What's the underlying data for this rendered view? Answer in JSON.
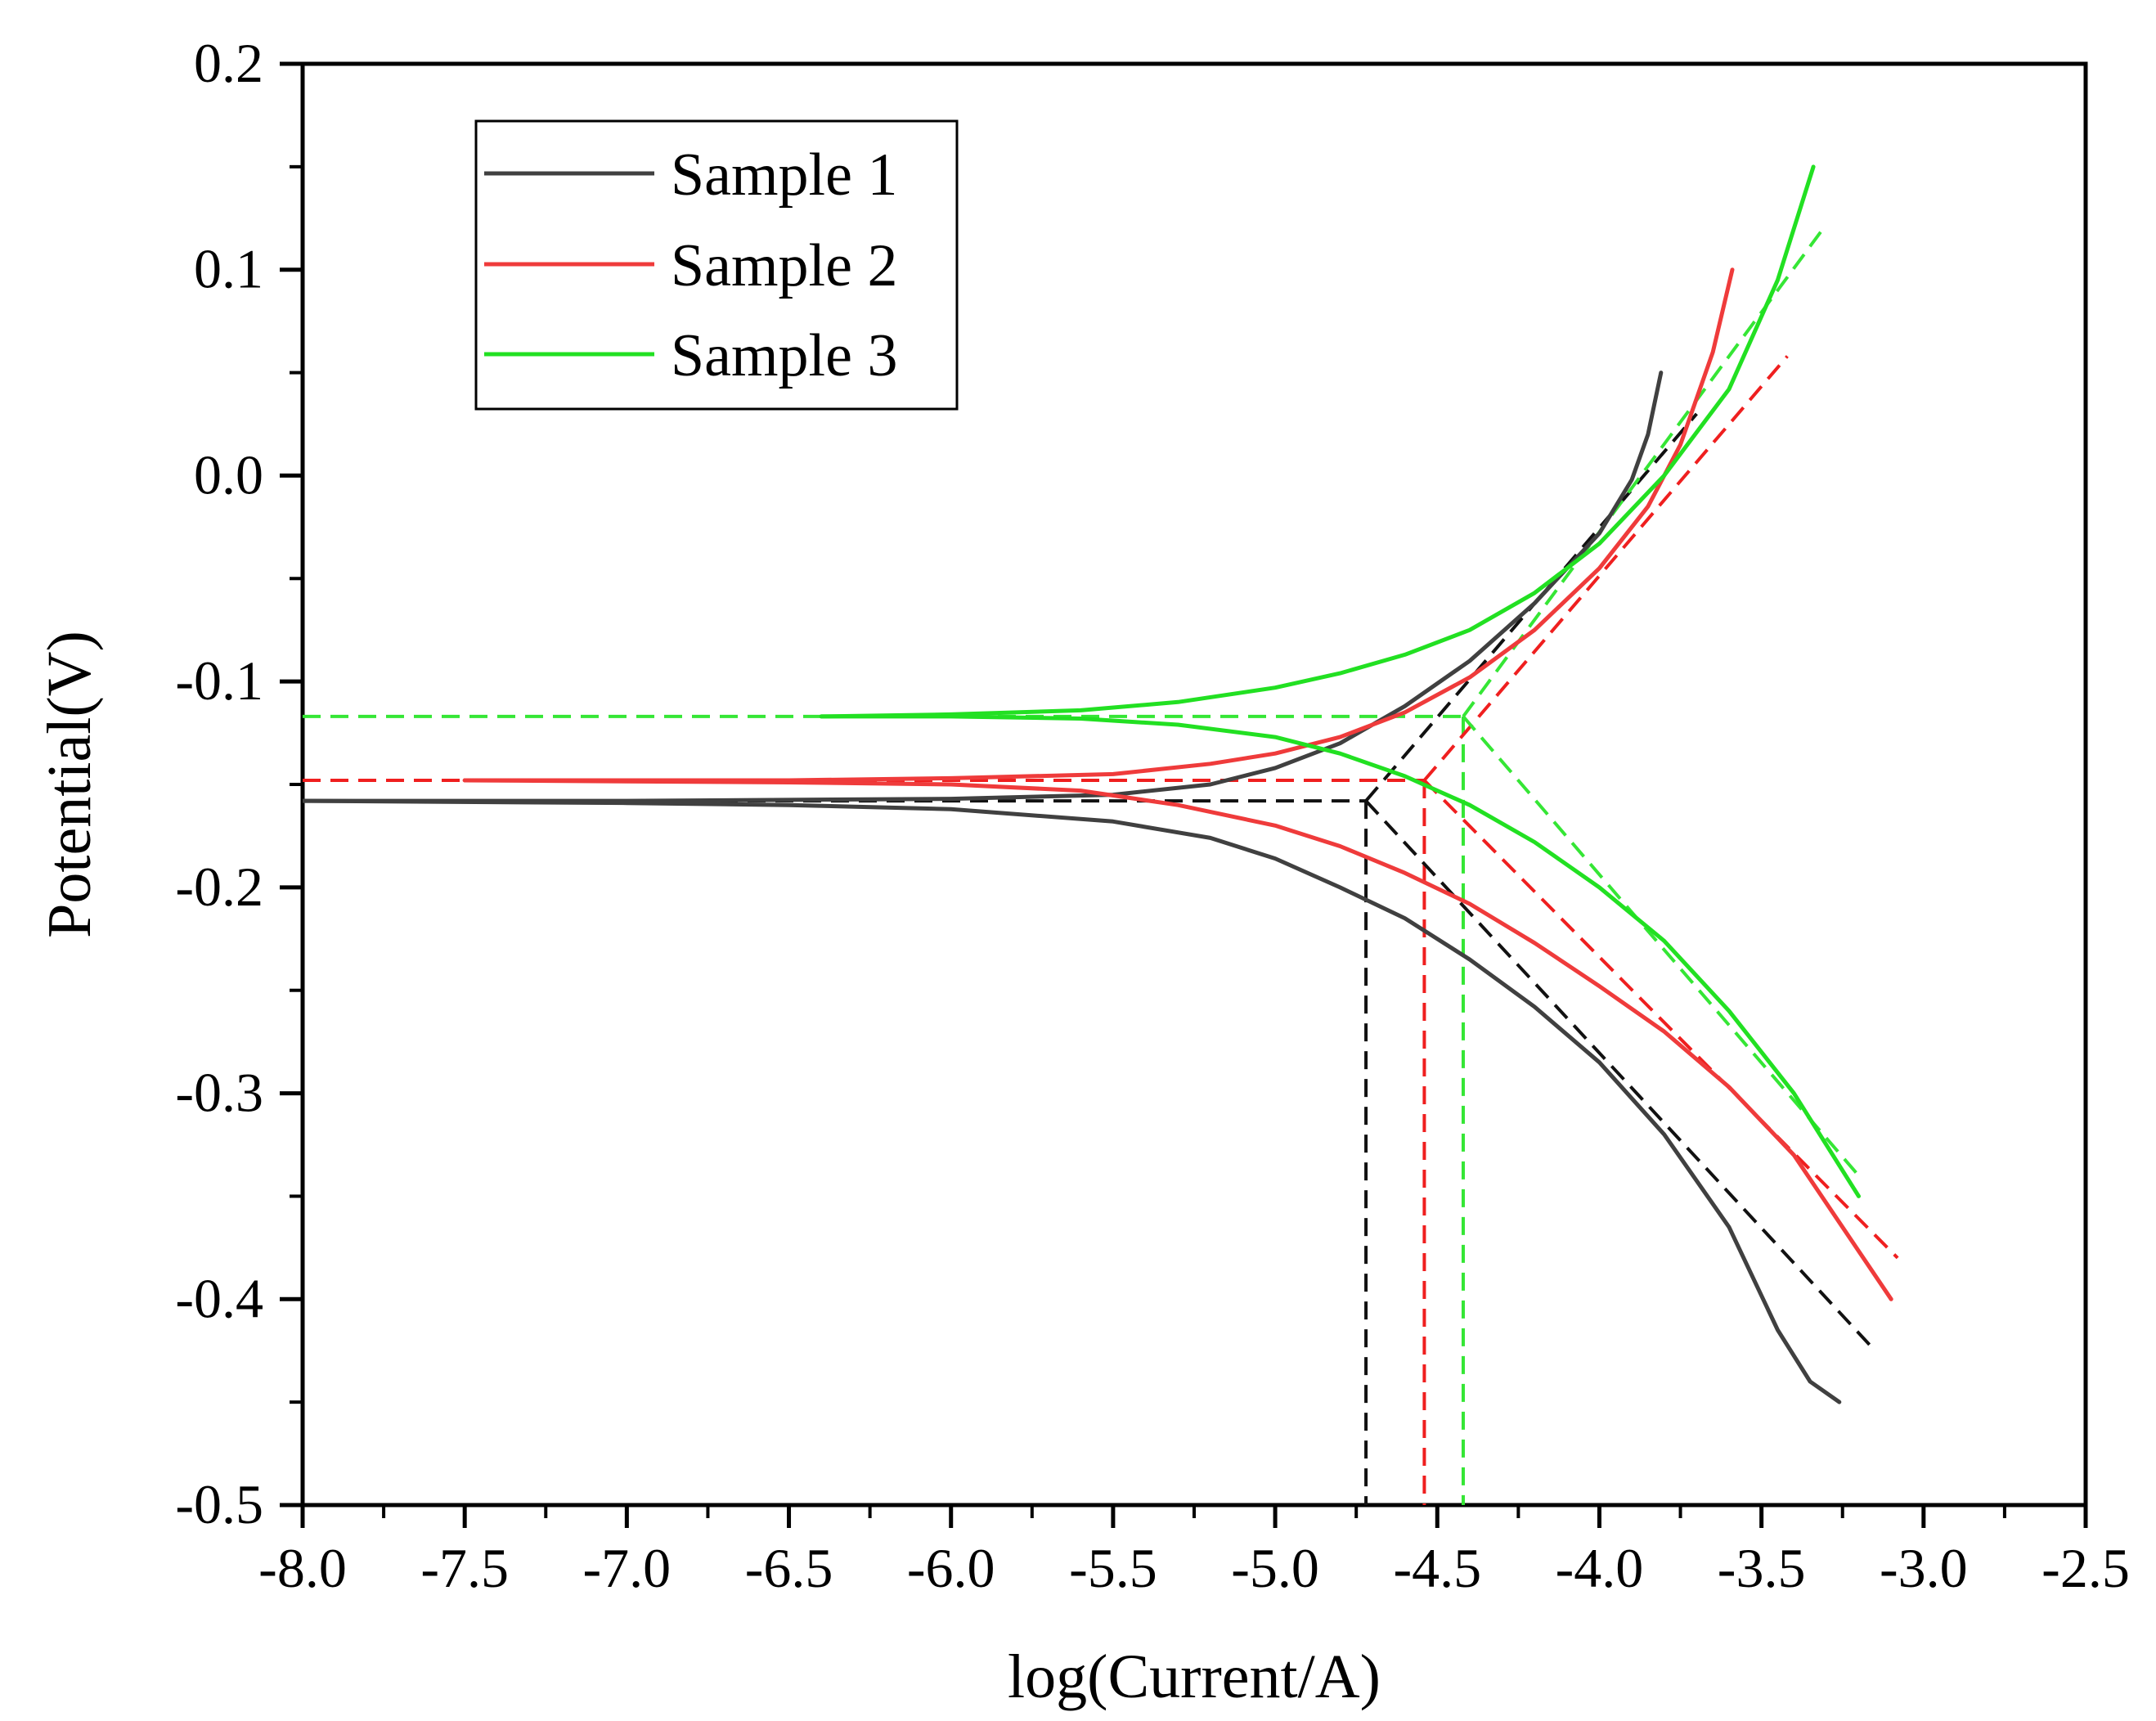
{
  "chart_data": {
    "type": "line",
    "title": "",
    "xlabel": "log(Current/A)",
    "ylabel": "Potential(V)",
    "xlim": [
      -8.0,
      -2.5
    ],
    "ylim": [
      -0.5,
      0.2
    ],
    "x_ticks": [
      -8.0,
      -7.5,
      -7.0,
      -6.5,
      -6.0,
      -5.5,
      -5.0,
      -4.5,
      -4.0,
      -3.5,
      -3.0,
      -2.5
    ],
    "x_tick_labels": [
      "-8.0",
      "-7.5",
      "-7.0",
      "-6.5",
      "-6.0",
      "-5.5",
      "-5.0",
      "-4.5",
      "-4.0",
      "-3.5",
      "-3.0",
      "-2.5"
    ],
    "y_ticks": [
      -0.5,
      -0.4,
      -0.3,
      -0.2,
      -0.1,
      0.0,
      0.1,
      0.2
    ],
    "y_tick_labels": [
      "-0.5",
      "-0.4",
      "-0.3",
      "-0.2",
      "-0.1",
      "0.0",
      "0.1",
      "0.2"
    ],
    "legend_position": "top-left",
    "grid": false,
    "series": [
      {
        "name": "Sample 1",
        "color": "#404040",
        "anodic": [
          [
            -8.0,
            -0.158
          ],
          [
            -7.0,
            -0.158
          ],
          [
            -6.0,
            -0.157
          ],
          [
            -5.5,
            -0.155
          ],
          [
            -5.2,
            -0.15
          ],
          [
            -5.0,
            -0.142
          ],
          [
            -4.8,
            -0.13
          ],
          [
            -4.6,
            -0.112
          ],
          [
            -4.4,
            -0.09
          ],
          [
            -4.2,
            -0.062
          ],
          [
            -4.0,
            -0.028
          ],
          [
            -3.9,
            -0.002
          ],
          [
            -3.85,
            0.02
          ],
          [
            -3.81,
            0.05
          ]
        ],
        "cathodic": [
          [
            -8.0,
            -0.158
          ],
          [
            -7.0,
            -0.159
          ],
          [
            -6.5,
            -0.16
          ],
          [
            -6.0,
            -0.162
          ],
          [
            -5.5,
            -0.168
          ],
          [
            -5.2,
            -0.176
          ],
          [
            -5.0,
            -0.186
          ],
          [
            -4.8,
            -0.2
          ],
          [
            -4.6,
            -0.215
          ],
          [
            -4.4,
            -0.235
          ],
          [
            -4.2,
            -0.258
          ],
          [
            -4.0,
            -0.285
          ],
          [
            -3.8,
            -0.32
          ],
          [
            -3.6,
            -0.365
          ],
          [
            -3.45,
            -0.415
          ],
          [
            -3.35,
            -0.44
          ],
          [
            -3.26,
            -0.45
          ]
        ],
        "anodic_tafel": [
          [
            -4.72,
            -0.158
          ],
          [
            -3.7,
            0.03
          ]
        ],
        "cathodic_tafel": [
          [
            -4.72,
            -0.158
          ],
          [
            -3.15,
            -0.425
          ]
        ],
        "icorr_log": -4.72,
        "ecorr": -0.158
      },
      {
        "name": "Sample 2",
        "color": "#ef3b3b",
        "anodic": [
          [
            -7.5,
            -0.148
          ],
          [
            -6.5,
            -0.148
          ],
          [
            -6.0,
            -0.147
          ],
          [
            -5.5,
            -0.145
          ],
          [
            -5.2,
            -0.14
          ],
          [
            -5.0,
            -0.135
          ],
          [
            -4.8,
            -0.127
          ],
          [
            -4.6,
            -0.115
          ],
          [
            -4.4,
            -0.098
          ],
          [
            -4.2,
            -0.075
          ],
          [
            -4.0,
            -0.045
          ],
          [
            -3.85,
            -0.015
          ],
          [
            -3.75,
            0.015
          ],
          [
            -3.65,
            0.06
          ],
          [
            -3.59,
            0.1
          ]
        ],
        "cathodic": [
          [
            -7.5,
            -0.148
          ],
          [
            -6.5,
            -0.149
          ],
          [
            -6.0,
            -0.15
          ],
          [
            -5.6,
            -0.153
          ],
          [
            -5.3,
            -0.16
          ],
          [
            -5.0,
            -0.17
          ],
          [
            -4.8,
            -0.18
          ],
          [
            -4.6,
            -0.193
          ],
          [
            -4.4,
            -0.208
          ],
          [
            -4.2,
            -0.227
          ],
          [
            -4.0,
            -0.248
          ],
          [
            -3.8,
            -0.27
          ],
          [
            -3.6,
            -0.297
          ],
          [
            -3.4,
            -0.33
          ],
          [
            -3.25,
            -0.365
          ],
          [
            -3.1,
            -0.4
          ]
        ],
        "anodic_tafel": [
          [
            -4.54,
            -0.148
          ],
          [
            -3.42,
            0.058
          ]
        ],
        "cathodic_tafel": [
          [
            -4.54,
            -0.148
          ],
          [
            -3.08,
            -0.38
          ]
        ],
        "icorr_log": -4.54,
        "ecorr": -0.148
      },
      {
        "name": "Sample 3",
        "color": "#22e022",
        "anodic": [
          [
            -6.4,
            -0.117
          ],
          [
            -6.0,
            -0.116
          ],
          [
            -5.6,
            -0.114
          ],
          [
            -5.3,
            -0.11
          ],
          [
            -5.0,
            -0.103
          ],
          [
            -4.8,
            -0.096
          ],
          [
            -4.6,
            -0.087
          ],
          [
            -4.4,
            -0.075
          ],
          [
            -4.2,
            -0.057
          ],
          [
            -4.0,
            -0.033
          ],
          [
            -3.8,
            0.0
          ],
          [
            -3.6,
            0.042
          ],
          [
            -3.45,
            0.095
          ],
          [
            -3.34,
            0.15
          ]
        ],
        "cathodic": [
          [
            -6.4,
            -0.117
          ],
          [
            -6.0,
            -0.117
          ],
          [
            -5.6,
            -0.118
          ],
          [
            -5.3,
            -0.121
          ],
          [
            -5.0,
            -0.127
          ],
          [
            -4.8,
            -0.135
          ],
          [
            -4.6,
            -0.146
          ],
          [
            -4.4,
            -0.16
          ],
          [
            -4.2,
            -0.178
          ],
          [
            -4.0,
            -0.2
          ],
          [
            -3.8,
            -0.226
          ],
          [
            -3.6,
            -0.26
          ],
          [
            -3.4,
            -0.3
          ],
          [
            -3.2,
            -0.35
          ]
        ],
        "anodic_tafel": [
          [
            -4.42,
            -0.117
          ],
          [
            -3.3,
            0.122
          ]
        ],
        "cathodic_tafel": [
          [
            -4.42,
            -0.117
          ],
          [
            -3.2,
            -0.34
          ]
        ],
        "icorr_log": -4.42,
        "ecorr": -0.117
      }
    ]
  }
}
